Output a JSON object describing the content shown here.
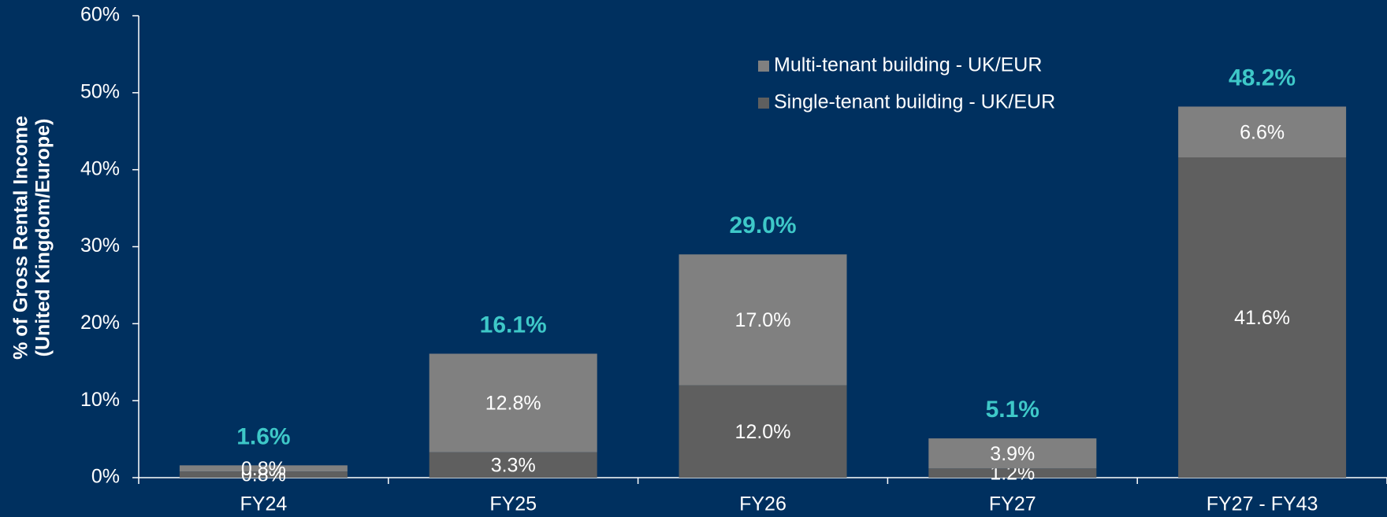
{
  "chart_data": {
    "type": "stacked_bar",
    "ylabel": [
      "% of Gross Rental Income",
      "(United Kingdom/Europe)"
    ],
    "categories": [
      "FY24",
      "FY25",
      "FY26",
      "FY27",
      "FY27 - FY43"
    ],
    "series": [
      {
        "name": "Single-tenant building - UK/EUR",
        "color": "#5f5f5f",
        "values": [
          0.8,
          3.3,
          12.0,
          1.2,
          41.6
        ],
        "value_labels": [
          "0.8%",
          "3.3%",
          "12.0%",
          "1.2%",
          "41.6%"
        ]
      },
      {
        "name": "Multi-tenant building - UK/EUR",
        "color": "#808080",
        "values": [
          0.8,
          12.8,
          17.0,
          3.9,
          6.6
        ],
        "value_labels": [
          "0.8%",
          "12.8%",
          "17.0%",
          "3.9%",
          "6.6%"
        ]
      }
    ],
    "totals": [
      1.6,
      16.1,
      29.0,
      5.1,
      48.2
    ],
    "total_labels": [
      "1.6%",
      "16.1%",
      "29.0%",
      "5.1%",
      "48.2%"
    ],
    "total_color": "#3ec8c8",
    "ylim": [
      0,
      60
    ],
    "yticks": [
      {
        "value": 0,
        "label": "0%"
      },
      {
        "value": 10,
        "label": "10%"
      },
      {
        "value": 20,
        "label": "20%"
      },
      {
        "value": 30,
        "label": "30%"
      },
      {
        "value": 40,
        "label": "40%"
      },
      {
        "value": 50,
        "label": "50%"
      },
      {
        "value": 60,
        "label": "60%"
      }
    ],
    "legend": "top-right"
  }
}
